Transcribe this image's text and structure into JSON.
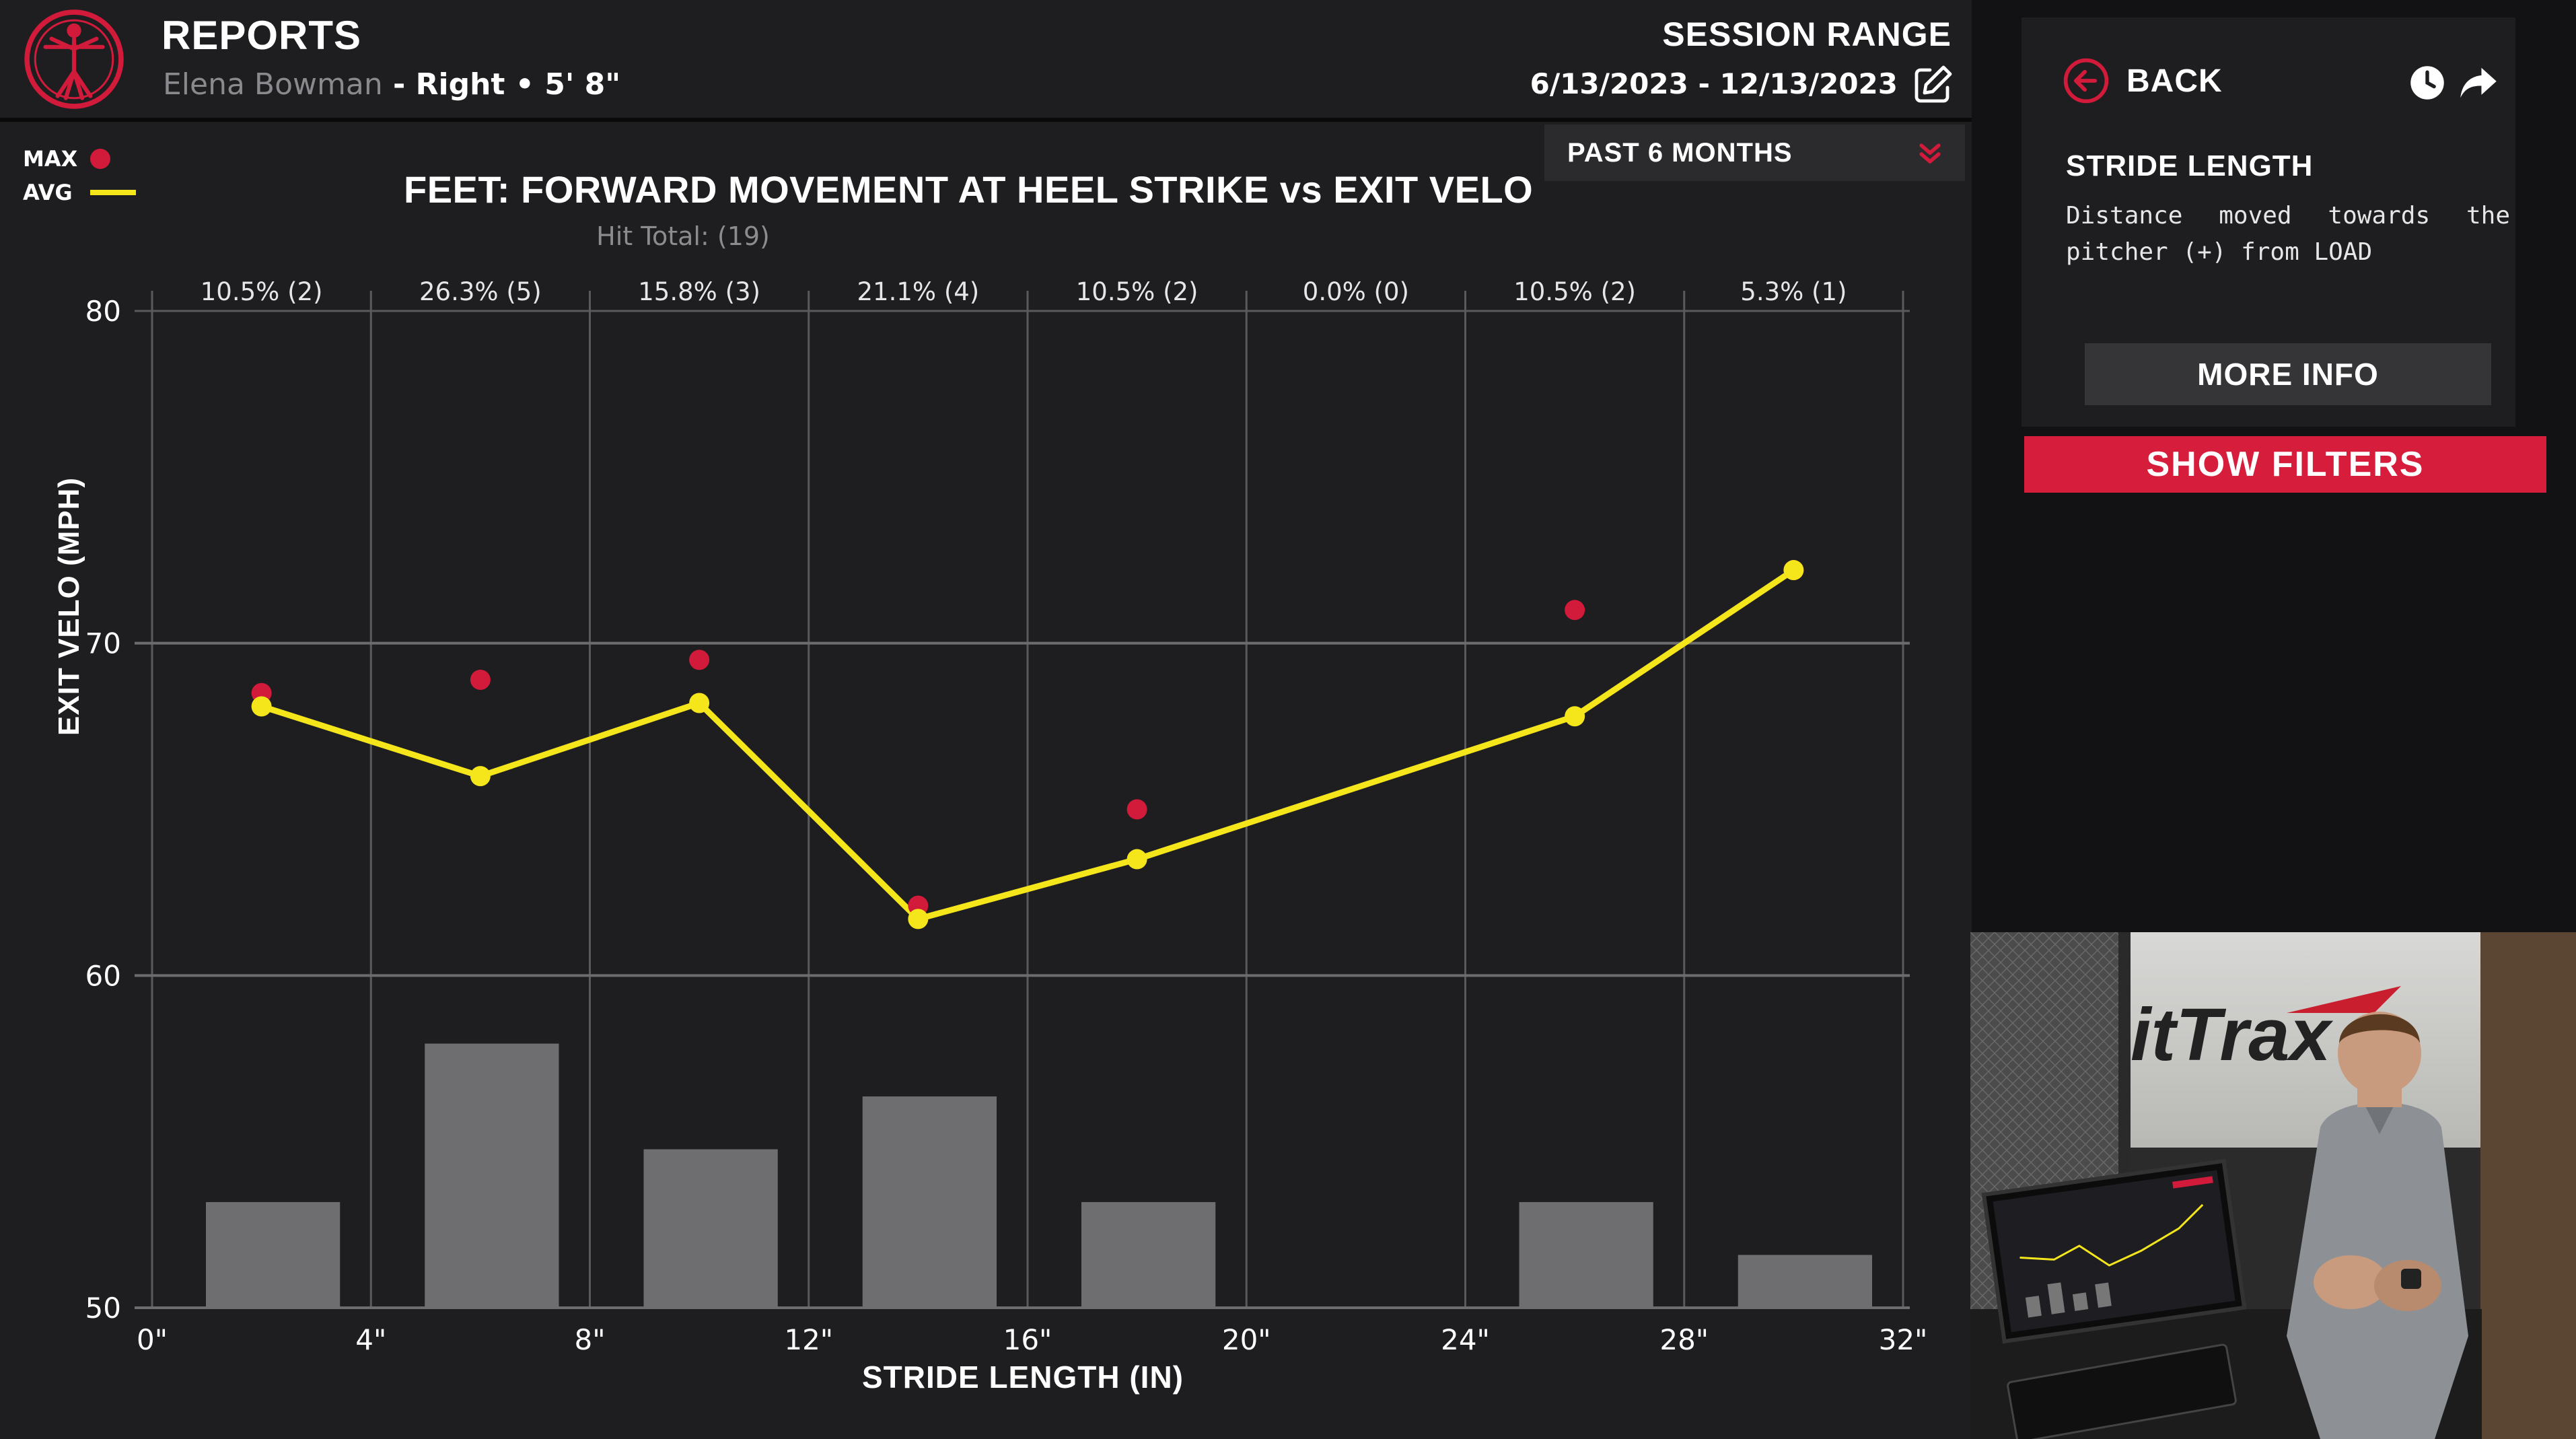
{
  "header": {
    "title": "REPORTS",
    "athlete_name": "Elena Bowman",
    "athlete_details": " - Right • 5' 8\"",
    "session_range_label": "SESSION RANGE",
    "session_range_dates": "6/13/2023 - 12/13/2023"
  },
  "icons": {
    "logo": "vitruvian-figure-logo",
    "edit": "edit-icon",
    "back": "circle-arrow-left-icon",
    "history": "clock-icon",
    "share": "share-arrow-icon",
    "dropdown": "double-chevron-down-icon"
  },
  "colors": {
    "accent_red": "#d21a3a",
    "avg_yellow": "#f5e61c",
    "bars": "#6e6e70",
    "background": "#1e1e21"
  },
  "legend": {
    "max_label": "MAX",
    "avg_label": "AVG"
  },
  "period_dropdown": {
    "selected": "PAST 6 MONTHS"
  },
  "chart_data": {
    "type": "line",
    "title": "FEET: FORWARD MOVEMENT AT HEEL STRIKE vs EXIT VELO",
    "subtitle": "Hit Total: (19)",
    "xlabel": "STRIDE LENGTH (IN)",
    "ylabel": "EXIT VELO (MPH)",
    "xlim": [
      0,
      32
    ],
    "ylim": [
      50,
      80
    ],
    "x_ticks": [
      "0\"",
      "4\"",
      "8\"",
      "12\"",
      "16\"",
      "20\"",
      "24\"",
      "28\"",
      "32\""
    ],
    "y_ticks": [
      "80",
      "70",
      "60",
      "50"
    ],
    "grid": true,
    "bin_labels": [
      "10.5% (2)",
      "26.3% (5)",
      "15.8% (3)",
      "21.1% (4)",
      "10.5% (2)",
      "0.0% (0)",
      "10.5% (2)",
      "5.3% (1)"
    ],
    "bins": [
      {
        "range": [
          0,
          4
        ],
        "percent": 10.5,
        "count": 2
      },
      {
        "range": [
          4,
          8
        ],
        "percent": 26.3,
        "count": 5
      },
      {
        "range": [
          8,
          12
        ],
        "percent": 15.8,
        "count": 3
      },
      {
        "range": [
          12,
          16
        ],
        "percent": 21.1,
        "count": 4
      },
      {
        "range": [
          16,
          20
        ],
        "percent": 10.5,
        "count": 2
      },
      {
        "range": [
          20,
          24
        ],
        "percent": 0.0,
        "count": 0
      },
      {
        "range": [
          24,
          28
        ],
        "percent": 10.5,
        "count": 2
      },
      {
        "range": [
          28,
          32
        ],
        "percent": 5.3,
        "count": 1
      }
    ],
    "series": [
      {
        "name": "AVG",
        "type": "line",
        "points": [
          [
            2,
            68.1
          ],
          [
            6,
            66.0
          ],
          [
            10,
            68.2
          ],
          [
            14,
            61.7
          ],
          [
            18,
            63.5
          ],
          [
            26,
            67.8
          ],
          [
            30,
            72.2
          ]
        ]
      },
      {
        "name": "MAX",
        "type": "scatter",
        "points": [
          [
            2,
            68.5
          ],
          [
            6,
            68.9
          ],
          [
            10,
            69.5
          ],
          [
            14,
            62.1
          ],
          [
            18,
            65.0
          ],
          [
            26,
            71.0
          ],
          [
            30,
            72.2
          ]
        ]
      }
    ]
  },
  "info_card": {
    "back_label": "BACK",
    "metric_name": "STRIDE LENGTH",
    "metric_description": "Distance moved towards the pitcher (+) from LOAD",
    "more_info_label": "MORE INFO"
  },
  "filters": {
    "show_filters_label": "SHOW FILTERS"
  },
  "video": {
    "brand_text": "itTrax"
  }
}
